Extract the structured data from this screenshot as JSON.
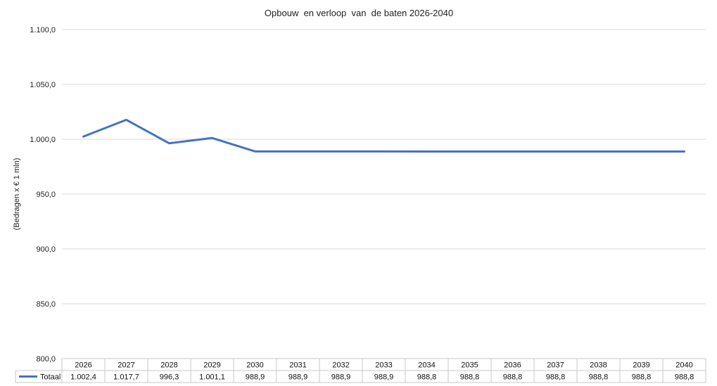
{
  "chart_data": {
    "type": "line",
    "title": "Opbouw  en verloop  van  de baten 2026-2040",
    "ylabel": "(Bedragen x € 1 mln)",
    "xlabel": "",
    "ylim": [
      800,
      1100
    ],
    "yticks": [
      800,
      850,
      900,
      950,
      1000,
      1050,
      1100
    ],
    "ytick_labels": [
      "800,0",
      "850,0",
      "900,0",
      "950,0",
      "1.000,0",
      "1.050,0",
      "1.100,0"
    ],
    "grid": true,
    "legend": "data-table",
    "categories": [
      "2026",
      "2027",
      "2028",
      "2029",
      "2030",
      "2031",
      "2032",
      "2033",
      "2034",
      "2035",
      "2036",
      "2037",
      "2038",
      "2039",
      "2040"
    ],
    "series": [
      {
        "name": "Totaal",
        "color": "#4472C4",
        "values": [
          1002.4,
          1017.7,
          996.3,
          1001.1,
          988.9,
          988.9,
          988.9,
          988.9,
          988.8,
          988.8,
          988.8,
          988.8,
          988.8,
          988.8,
          988.8
        ],
        "value_labels": [
          "1.002,4",
          "1.017,7",
          "996,3",
          "1.001,1",
          "988,9",
          "988,9",
          "988,9",
          "988,9",
          "988,8",
          "988,8",
          "988,8",
          "988,8",
          "988,8",
          "988,8",
          "988,8"
        ]
      }
    ]
  }
}
